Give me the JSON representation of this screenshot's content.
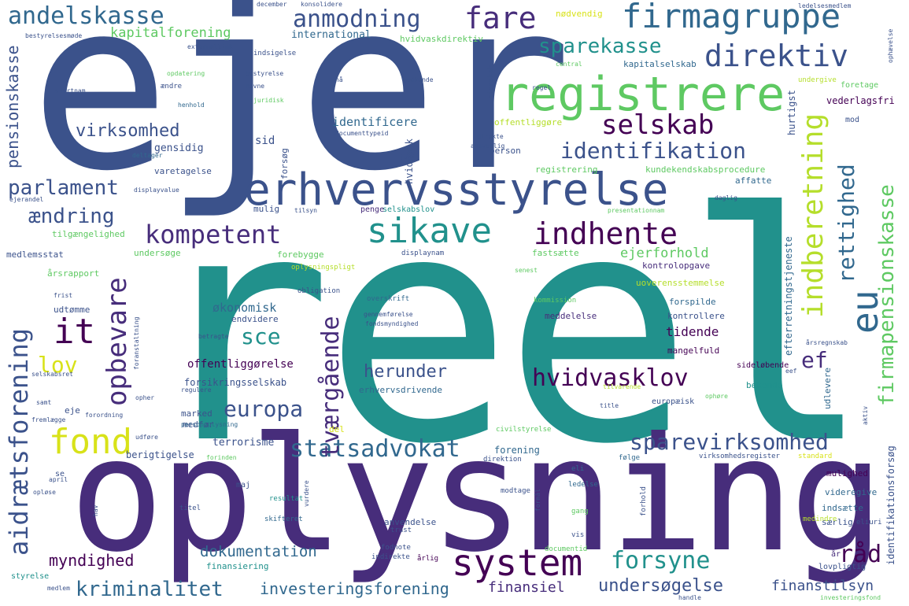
{
  "words": [
    {
      "text": "reel",
      "color": "#21918c"
    },
    {
      "text": "ejer",
      "color": "#3b528b"
    },
    {
      "text": "oplysning",
      "color": "#472d7b"
    },
    {
      "text": "erhvervsstyrelse",
      "color": "#3b528b"
    },
    {
      "text": "registrere",
      "color": "#5ec962"
    },
    {
      "text": "system",
      "color": "#440154"
    },
    {
      "text": "firmagruppe",
      "color": "#31688e"
    },
    {
      "text": "sikave",
      "color": "#21918c"
    },
    {
      "text": "indhente",
      "color": "#440154"
    },
    {
      "text": "direktiv",
      "color": "#3b528b"
    },
    {
      "text": "selskab",
      "color": "#440154"
    },
    {
      "text": "kompetent",
      "color": "#472d7b"
    },
    {
      "text": "sparevirksomhed",
      "color": "#3b528b"
    },
    {
      "text": "statsadvokat",
      "color": "#31688e"
    },
    {
      "text": "identifikation",
      "color": "#3b528b"
    },
    {
      "text": "fare",
      "color": "#472d7b"
    },
    {
      "text": "anmodning",
      "color": "#3b528b"
    },
    {
      "text": "andelskasse",
      "color": "#31688e"
    },
    {
      "text": "indberetning",
      "color": "#b5de2b"
    },
    {
      "text": "firmapensionskasse",
      "color": "#5ec962"
    },
    {
      "text": "rettighed",
      "color": "#31688e"
    },
    {
      "text": "eu",
      "color": "#31688e"
    },
    {
      "text": "aidrætsforening",
      "color": "#3b528b"
    },
    {
      "text": "fond",
      "color": "#d8e219"
    },
    {
      "text": "opbevare",
      "color": "#472d7b"
    },
    {
      "text": "tværgående",
      "color": "#472d7b"
    },
    {
      "text": "kriminalitet",
      "color": "#31688e"
    },
    {
      "text": "europa",
      "color": "#3b528b"
    },
    {
      "text": "hvidvasklov",
      "color": "#440154"
    },
    {
      "text": "forsyne",
      "color": "#21918c"
    },
    {
      "text": "råd",
      "color": "#440154"
    },
    {
      "text": "undersøgelse",
      "color": "#3b528b"
    },
    {
      "text": "investeringsforening",
      "color": "#31688e"
    },
    {
      "text": "parlament",
      "color": "#3b528b"
    },
    {
      "text": "ændring",
      "color": "#3b528b"
    },
    {
      "text": "virksomhed",
      "color": "#3b528b"
    },
    {
      "text": "sparekasse",
      "color": "#21918c"
    },
    {
      "text": "it",
      "color": "#440154"
    },
    {
      "text": "lov",
      "color": "#d8e219"
    },
    {
      "text": "sce",
      "color": "#21918c"
    },
    {
      "text": "herunder",
      "color": "#3b528b"
    },
    {
      "text": "ef",
      "color": "#472d7b"
    },
    {
      "text": "kapitalforening",
      "color": "#5ec962"
    },
    {
      "text": "pensionskasse",
      "color": "#3b528b"
    },
    {
      "text": "myndighed",
      "color": "#440154"
    },
    {
      "text": "dokumentation",
      "color": "#31688e"
    },
    {
      "text": "finansiel",
      "color": "#472d7b"
    },
    {
      "text": "finanstilsyn",
      "color": "#3b528b"
    },
    {
      "text": "ejerforhold",
      "color": "#5ec962"
    },
    {
      "text": "økonomisk",
      "color": "#31688e"
    },
    {
      "text": "tidende",
      "color": "#440154"
    },
    {
      "text": "identificere",
      "color": "#31688e"
    },
    {
      "text": "international",
      "color": "#31688e"
    },
    {
      "text": "hvidvaskdirektiv",
      "color": "#5ec962"
    },
    {
      "text": "gensidig",
      "color": "#3b528b"
    },
    {
      "text": "sid",
      "color": "#3b528b"
    },
    {
      "text": "offentliggørelse",
      "color": "#440154"
    },
    {
      "text": "forsikringsselskab",
      "color": "#3b528b"
    },
    {
      "text": "terrorisme",
      "color": "#3b528b"
    },
    {
      "text": "forening",
      "color": "#31688e"
    },
    {
      "text": "berigtigelse",
      "color": "#3b528b"
    },
    {
      "text": "kundekendskabsprocedure",
      "color": "#5ec962"
    },
    {
      "text": "kapitalselskab",
      "color": "#31688e"
    },
    {
      "text": "hurtigst",
      "color": "#3b528b"
    },
    {
      "text": "identifikationsforsøg",
      "color": "#3b528b"
    },
    {
      "text": "efterretningstjeneste",
      "color": "#31688e"
    },
    {
      "text": "vederlagsfri",
      "color": "#440154"
    },
    {
      "text": "hvidvask",
      "color": "#3b528b"
    },
    {
      "text": "forsøg",
      "color": "#3b528b"
    },
    {
      "text": "person",
      "color": "#3b528b"
    },
    {
      "text": "offentliggøre",
      "color": "#b5de2b"
    },
    {
      "text": "registrering",
      "color": "#5ec962"
    },
    {
      "text": "varetagelse",
      "color": "#3b528b"
    },
    {
      "text": "affatte",
      "color": "#31688e"
    },
    {
      "text": "mulig",
      "color": "#3b528b"
    },
    {
      "text": "selskabslov",
      "color": "#21918c"
    },
    {
      "text": "penge",
      "color": "#472d7b"
    },
    {
      "text": "tilgængelighed",
      "color": "#5ec962"
    },
    {
      "text": "medlemsstat",
      "color": "#3b528b"
    },
    {
      "text": "undersøge",
      "color": "#5ec962"
    },
    {
      "text": "forebygge",
      "color": "#5ec962"
    },
    {
      "text": "fastsætte",
      "color": "#5ec962"
    },
    {
      "text": "kontrolopgave",
      "color": "#472d7b"
    },
    {
      "text": "uoverensstemmelse",
      "color": "#b5de2b"
    },
    {
      "text": "forspilde",
      "color": "#31688e"
    },
    {
      "text": "kontrollere",
      "color": "#3b528b"
    },
    {
      "text": "meddelelse",
      "color": "#472d7b"
    },
    {
      "text": "endvidere",
      "color": "#3b528b"
    },
    {
      "text": "årsrapport",
      "color": "#5ec962"
    },
    {
      "text": "udtømme",
      "color": "#3b528b"
    },
    {
      "text": "mangelfuld",
      "color": "#440154"
    },
    {
      "text": "bekende",
      "color": "#21918c"
    },
    {
      "text": "udlevere",
      "color": "#31688e"
    },
    {
      "text": "marked",
      "color": "#3b528b"
    },
    {
      "text": "medfør",
      "color": "#3b528b"
    },
    {
      "text": "del",
      "color": "#d8e219"
    },
    {
      "text": "eje",
      "color": "#3b528b"
    },
    {
      "text": "mulighed",
      "color": "#440154"
    },
    {
      "text": "videregive",
      "color": "#31688e"
    },
    {
      "text": "indsætte",
      "color": "#31688e"
    },
    {
      "text": "særlig",
      "color": "#3b528b"
    },
    {
      "text": "anvendelse",
      "color": "#3b528b"
    },
    {
      "text": "finansiering",
      "color": "#21918c"
    },
    {
      "text": "styrelse",
      "color": "#21918c"
    },
    {
      "text": "lovpligtig",
      "color": "#3b528b"
    },
    {
      "text": "år",
      "color": "#472d7b"
    },
    {
      "text": "maj",
      "color": "#3b528b"
    },
    {
      "text": "resultat",
      "color": "#21918c"
    },
    {
      "text": "skifteret",
      "color": "#31688e"
    },
    {
      "text": "titel",
      "color": "#3b528b"
    },
    {
      "text": "forhold",
      "color": "#3b528b"
    },
    {
      "text": "nødvendig",
      "color": "#d8e219"
    },
    {
      "text": "undergive",
      "color": "#b5de2b"
    },
    {
      "text": "foretage",
      "color": "#5ec962"
    },
    {
      "text": "mod",
      "color": "#3b528b"
    },
    {
      "text": "sideløbende",
      "color": "#440154"
    },
    {
      "text": "overskrift",
      "color": "#31688e"
    },
    {
      "text": "kommission",
      "color": "#5ec962"
    },
    {
      "text": "obligation",
      "color": "#3b528b"
    },
    {
      "text": "senest",
      "color": "#5ec962"
    },
    {
      "text": "displaynam",
      "color": "#3b528b"
    },
    {
      "text": "oplysningspligt",
      "color": "#b5de2b"
    },
    {
      "text": "erhvervsdrivende",
      "color": "#31688e"
    },
    {
      "text": "fondsmyndighed",
      "color": "#3b528b"
    },
    {
      "text": "gennemførelse",
      "color": "#3b528b"
    },
    {
      "text": "europæisk",
      "color": "#3b528b"
    },
    {
      "text": "civilstyrelse",
      "color": "#5ec962"
    },
    {
      "text": "direktion",
      "color": "#3b528b"
    },
    {
      "text": "virksomhedsregister",
      "color": "#3b528b"
    },
    {
      "text": "følge",
      "color": "#31688e"
    },
    {
      "text": "standard",
      "color": "#d8e219"
    },
    {
      "text": "eli",
      "color": "#31688e"
    },
    {
      "text": "ledelse",
      "color": "#31688e"
    },
    {
      "text": "modtage",
      "color": "#3b528b"
    },
    {
      "text": "gang",
      "color": "#5ec962"
    },
    {
      "text": "vis",
      "color": "#3b528b"
    },
    {
      "text": "trust",
      "color": "#3b528b"
    },
    {
      "text": "fodnote",
      "color": "#3b528b"
    },
    {
      "text": "indirekte",
      "color": "#3b528b"
    },
    {
      "text": "årlig",
      "color": "#440154"
    },
    {
      "text": "documentid",
      "color": "#5ec962"
    },
    {
      "text": "medlem",
      "color": "#3b528b"
    },
    {
      "text": "handle",
      "color": "#3b528b"
    },
    {
      "text": "investeringsfond",
      "color": "#5ec962"
    },
    {
      "text": "medindre",
      "color": "#b5de2b"
    },
    {
      "text": "eliuri",
      "color": "#3b528b"
    },
    {
      "text": "formål",
      "color": "#3b528b"
    },
    {
      "text": "december",
      "color": "#3b528b"
    },
    {
      "text": "konsolidere",
      "color": "#3b528b"
    },
    {
      "text": "bestyrelsesmøde",
      "color": "#3b528b"
    },
    {
      "text": "externallink",
      "color": "#3b528b"
    },
    {
      "text": "indsigelse",
      "color": "#3b528b"
    },
    {
      "text": "opdatering",
      "color": "#5ec962"
    },
    {
      "text": "ændre",
      "color": "#3b528b"
    },
    {
      "text": "bestyrelse",
      "color": "#3b528b"
    },
    {
      "text": "nævne",
      "color": "#3b528b"
    },
    {
      "text": "nå",
      "color": "#3b528b"
    },
    {
      "text": "godkende",
      "color": "#3b528b"
    },
    {
      "text": "ejerskab",
      "color": "#3b528b"
    },
    {
      "text": "regel",
      "color": "#3b528b"
    },
    {
      "text": "central",
      "color": "#5ec962"
    },
    {
      "text": "ledelsesmedlem",
      "color": "#3b528b"
    },
    {
      "text": "ophævelse",
      "color": "#3b528b"
    },
    {
      "text": "shortnam",
      "color": "#3b528b"
    },
    {
      "text": "juridisk",
      "color": "#5ec962"
    },
    {
      "text": "henhold",
      "color": "#31688e"
    },
    {
      "text": "documenttypeid",
      "color": "#3b528b"
    },
    {
      "text": "juni",
      "color": "#3b528b"
    },
    {
      "text": "direkte",
      "color": "#3b528b"
    },
    {
      "text": "ansvarlig",
      "color": "#3b528b"
    },
    {
      "text": "deltager",
      "color": "#31688e"
    },
    {
      "text": "displayvalue",
      "color": "#3b528b"
    },
    {
      "text": "ejerandel",
      "color": "#3b528b"
    },
    {
      "text": "tilsyn",
      "color": "#3b528b"
    },
    {
      "text": "presentationnam",
      "color": "#5ec962"
    },
    {
      "text": "daglig",
      "color": "#3b528b"
    },
    {
      "text": "frist",
      "color": "#3b528b"
    },
    {
      "text": "foranstaltning",
      "color": "#3b528b"
    },
    {
      "text": "betragte",
      "color": "#3b528b"
    },
    {
      "text": "selskabsret",
      "color": "#3b528b"
    },
    {
      "text": "samt",
      "color": "#3b528b"
    },
    {
      "text": "fremlægge",
      "color": "#3b528b"
    },
    {
      "text": "forordning",
      "color": "#3b528b"
    },
    {
      "text": "regulere",
      "color": "#3b528b"
    },
    {
      "text": "opher",
      "color": "#3b528b"
    },
    {
      "text": "personoplysning",
      "color": "#31688e"
    },
    {
      "text": "udføre",
      "color": "#3b528b"
    },
    {
      "text": "forinden",
      "color": "#5ec962"
    },
    {
      "text": "se",
      "color": "#3b528b"
    },
    {
      "text": "april",
      "color": "#3b528b"
    },
    {
      "text": "hav",
      "color": "#3b528b"
    },
    {
      "text": "opløse",
      "color": "#3b528b"
    },
    {
      "text": "title",
      "color": "#3b528b"
    },
    {
      "text": "tilvarende",
      "color": "#b5de2b"
    },
    {
      "text": "ophøre",
      "color": "#5ec962"
    },
    {
      "text": "årsregnskab",
      "color": "#3b528b"
    },
    {
      "text": "eef",
      "color": "#3b528b"
    },
    {
      "text": "aktiv",
      "color": "#3b528b"
    },
    {
      "text": "vurdere",
      "color": "#3b528b"
    }
  ]
}
